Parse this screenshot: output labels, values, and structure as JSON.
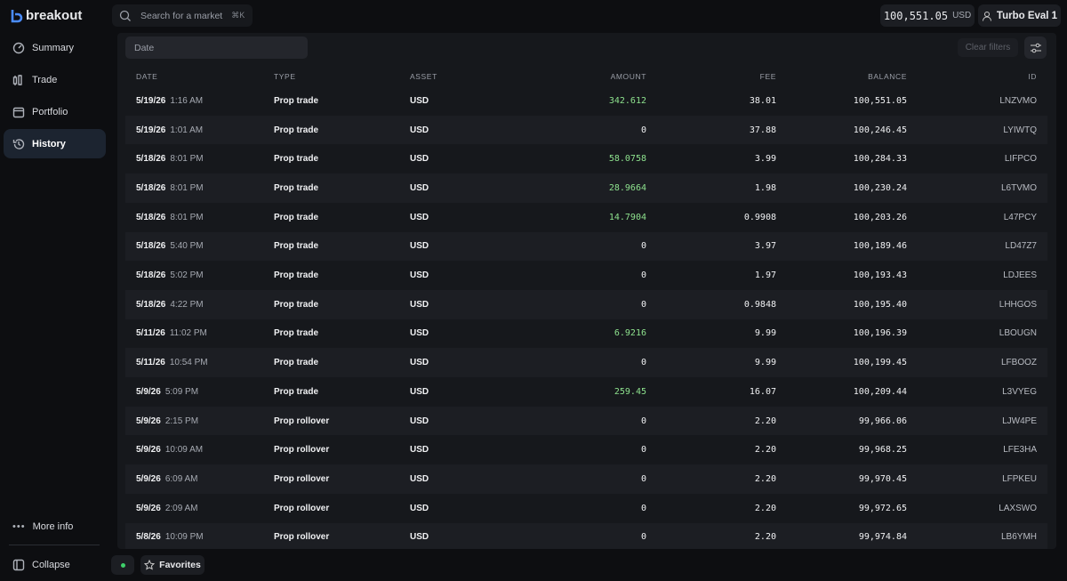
{
  "header": {
    "brand": "breakout",
    "search_placeholder": "Search for a market",
    "search_shortcut": "⌘K",
    "balance": "100,551.05",
    "currency": "USD",
    "account": "Turbo Eval 1"
  },
  "sidebar": {
    "nav": [
      "Summary",
      "Trade",
      "Portfolio",
      "History"
    ],
    "active": "History",
    "more": "More info",
    "collapse": "Collapse"
  },
  "footer": {
    "favorites": "Favorites"
  },
  "filters": {
    "date_placeholder": "Date",
    "clear": "Clear filters"
  },
  "table": {
    "columns": [
      "DATE",
      "TYPE",
      "ASSET",
      "AMOUNT",
      "FEE",
      "BALANCE",
      "ID"
    ],
    "rows": [
      {
        "date": "5/19/26",
        "time": "1:16 AM",
        "type": "Prop trade",
        "asset": "USD",
        "amount": "342.612",
        "fee": "38.01",
        "balance": "100,551.05",
        "id": "LNZVMO"
      },
      {
        "date": "5/19/26",
        "time": "1:01 AM",
        "type": "Prop trade",
        "asset": "USD",
        "amount": "0",
        "fee": "37.88",
        "balance": "100,246.45",
        "id": "LYIWTQ"
      },
      {
        "date": "5/18/26",
        "time": "8:01 PM",
        "type": "Prop trade",
        "asset": "USD",
        "amount": "58.0758",
        "fee": "3.99",
        "balance": "100,284.33",
        "id": "LIFPCO"
      },
      {
        "date": "5/18/26",
        "time": "8:01 PM",
        "type": "Prop trade",
        "asset": "USD",
        "amount": "28.9664",
        "fee": "1.98",
        "balance": "100,230.24",
        "id": "L6TVMO"
      },
      {
        "date": "5/18/26",
        "time": "8:01 PM",
        "type": "Prop trade",
        "asset": "USD",
        "amount": "14.7904",
        "fee": "0.9908",
        "balance": "100,203.26",
        "id": "L47PCY"
      },
      {
        "date": "5/18/26",
        "time": "5:40 PM",
        "type": "Prop trade",
        "asset": "USD",
        "amount": "0",
        "fee": "3.97",
        "balance": "100,189.46",
        "id": "LD47Z7"
      },
      {
        "date": "5/18/26",
        "time": "5:02 PM",
        "type": "Prop trade",
        "asset": "USD",
        "amount": "0",
        "fee": "1.97",
        "balance": "100,193.43",
        "id": "LDJEES"
      },
      {
        "date": "5/18/26",
        "time": "4:22 PM",
        "type": "Prop trade",
        "asset": "USD",
        "amount": "0",
        "fee": "0.9848",
        "balance": "100,195.40",
        "id": "LHHGOS"
      },
      {
        "date": "5/11/26",
        "time": "11:02 PM",
        "type": "Prop trade",
        "asset": "USD",
        "amount": "6.9216",
        "fee": "9.99",
        "balance": "100,196.39",
        "id": "LBOUGN"
      },
      {
        "date": "5/11/26",
        "time": "10:54 PM",
        "type": "Prop trade",
        "asset": "USD",
        "amount": "0",
        "fee": "9.99",
        "balance": "100,199.45",
        "id": "LFBOOZ"
      },
      {
        "date": "5/9/26",
        "time": "5:09 PM",
        "type": "Prop trade",
        "asset": "USD",
        "amount": "259.45",
        "fee": "16.07",
        "balance": "100,209.44",
        "id": "L3VYEG"
      },
      {
        "date": "5/9/26",
        "time": "2:15 PM",
        "type": "Prop rollover",
        "asset": "USD",
        "amount": "0",
        "fee": "2.20",
        "balance": "99,966.06",
        "id": "LJW4PE"
      },
      {
        "date": "5/9/26",
        "time": "10:09 AM",
        "type": "Prop rollover",
        "asset": "USD",
        "amount": "0",
        "fee": "2.20",
        "balance": "99,968.25",
        "id": "LFE3HA"
      },
      {
        "date": "5/9/26",
        "time": "6:09 AM",
        "type": "Prop rollover",
        "asset": "USD",
        "amount": "0",
        "fee": "2.20",
        "balance": "99,970.45",
        "id": "LFPKEU"
      },
      {
        "date": "5/9/26",
        "time": "2:09 AM",
        "type": "Prop rollover",
        "asset": "USD",
        "amount": "0",
        "fee": "2.20",
        "balance": "99,972.65",
        "id": "LAXSWO"
      },
      {
        "date": "5/8/26",
        "time": "10:09 PM",
        "type": "Prop rollover",
        "asset": "USD",
        "amount": "0",
        "fee": "2.20",
        "balance": "99,974.84",
        "id": "LB6YMH"
      }
    ]
  }
}
